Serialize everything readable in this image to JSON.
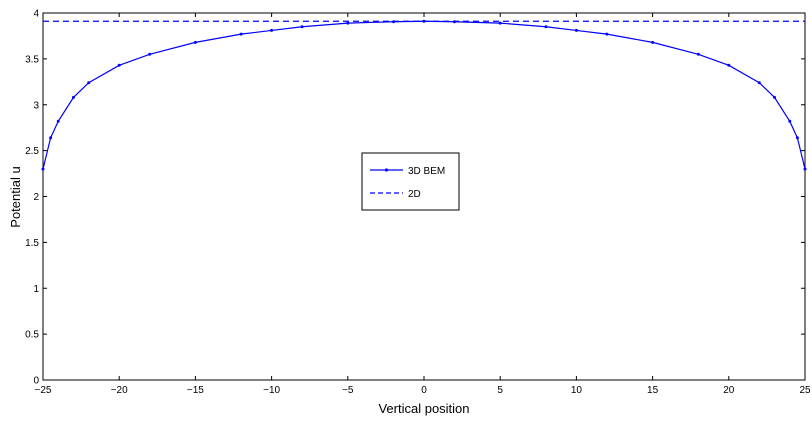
{
  "chart_data": {
    "type": "line",
    "title": "",
    "xlabel": "Vertical position",
    "ylabel": "Potential u",
    "xlim": [
      -25,
      25
    ],
    "ylim": [
      0,
      4
    ],
    "x_ticks": [
      -25,
      -20,
      -15,
      -10,
      -5,
      0,
      5,
      10,
      15,
      20,
      25
    ],
    "x_tick_labels": [
      "−25",
      "−20",
      "−15",
      "−10",
      "−5",
      "0",
      "5",
      "10",
      "15",
      "20",
      "25"
    ],
    "y_ticks": [
      0,
      0.5,
      1,
      1.5,
      2,
      2.5,
      3,
      3.5,
      4
    ],
    "y_tick_labels": [
      "0",
      "0.5",
      "1",
      "1.5",
      "2",
      "2.5",
      "3",
      "3.5",
      "4"
    ],
    "grid": false,
    "legend_position": "center",
    "series": [
      {
        "name": "3D BEM",
        "style": "solid-with-point-markers",
        "color": "#0000ff",
        "x": [
          -25,
          -24.5,
          -24,
          -23,
          -22,
          -20,
          -18,
          -15,
          -12,
          -10,
          -8,
          -5,
          -2,
          0,
          2,
          5,
          8,
          10,
          12,
          15,
          18,
          20,
          22,
          23,
          24,
          24.5,
          25
        ],
        "y": [
          2.3,
          2.64,
          2.82,
          3.08,
          3.24,
          3.43,
          3.55,
          3.68,
          3.77,
          3.81,
          3.85,
          3.89,
          3.905,
          3.91,
          3.905,
          3.89,
          3.85,
          3.81,
          3.77,
          3.68,
          3.55,
          3.43,
          3.24,
          3.08,
          2.82,
          2.64,
          2.3
        ]
      },
      {
        "name": "2D",
        "style": "dashed",
        "color": "#0000ff",
        "x": [
          -25,
          25
        ],
        "y": [
          3.91,
          3.91
        ]
      }
    ]
  }
}
